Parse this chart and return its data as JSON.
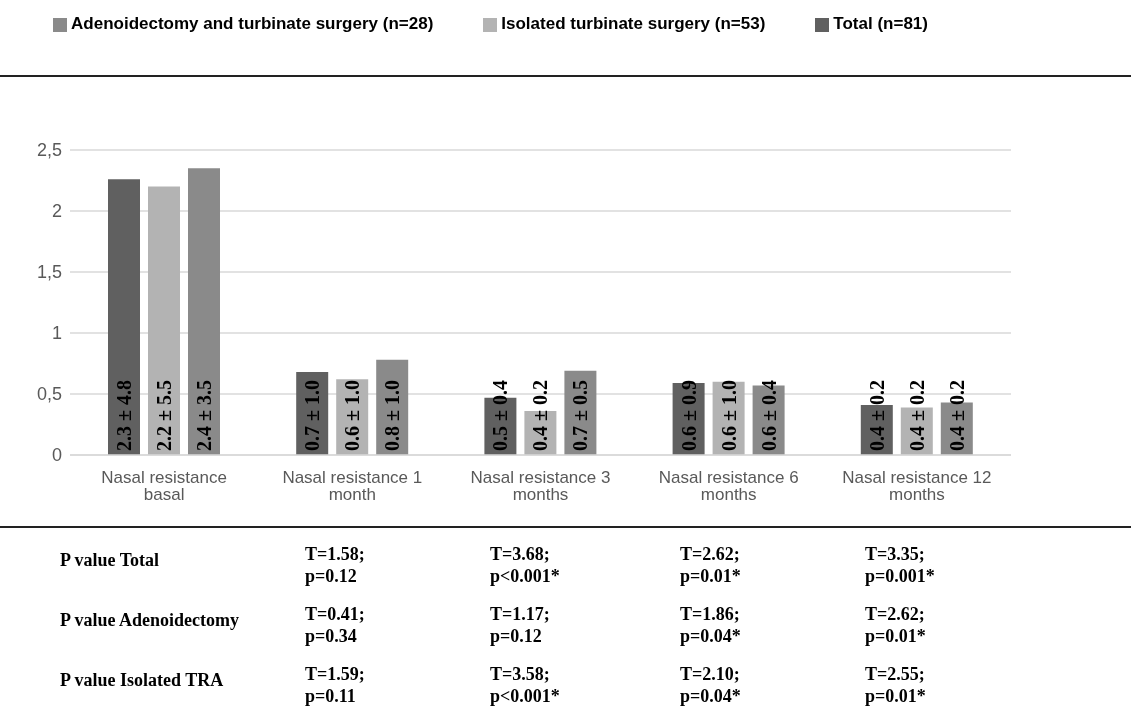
{
  "chart_data": {
    "type": "bar",
    "categories": [
      "Nasal resistance basal",
      "Nasal resistance 1 month",
      "Nasal resistance 3 months",
      "Nasal resistance 6 months",
      "Nasal resistance 12 months"
    ],
    "series": [
      {
        "name": "Total (n=81)",
        "color": "#606060",
        "values": [
          2.26,
          0.68,
          0.47,
          0.59,
          0.41
        ],
        "value_labels": [
          "2.3 ± 4.8",
          "0.7 ± 1.0",
          "0.5 ± 0.4",
          "0.6 ± 0.9",
          "0.4 ± 0.2"
        ]
      },
      {
        "name": "Isolated turbinate surgery (n=53)",
        "color": "#b3b3b3",
        "values": [
          2.2,
          0.62,
          0.36,
          0.6,
          0.39
        ],
        "value_labels": [
          "2.2 ± 5.5",
          "0.6 ± 1.0",
          "0.4 ± 0.2",
          "0.6 ± 1.0",
          "0.4 ± 0.2"
        ]
      },
      {
        "name": "Adenoidectomy and turbinate surgery (n=28)",
        "color": "#8a8a8a",
        "values": [
          2.35,
          0.78,
          0.69,
          0.57,
          0.43
        ],
        "value_labels": [
          "2.4 ± 3.5",
          "0.8 ± 1.0",
          "0.7 ± 0.5",
          "0.6 ± 0.4",
          "0.4 ± 0.2"
        ]
      }
    ],
    "ylim": [
      0,
      2.5
    ],
    "yticks": [
      0,
      {
        "value": 0.5,
        "label": "0,5"
      },
      1,
      {
        "value": 1.5,
        "label": "1,5"
      },
      2,
      {
        "value": 2.5,
        "label": "2,5"
      }
    ],
    "grid": "y",
    "legend": "top",
    "annotations": [
      "P value Total",
      "T=1.58; p=0.12",
      "T=3.68; p<0.001*",
      "T=2.62; p=0.01*",
      "T=3.35; p=0.001*",
      "P value Adenoidectomy",
      "T=0.41; p=0.34",
      "T=1.17; p=0.12",
      "T=1.86; p=0.04*",
      "T=2.62; p=0.01*",
      "P value Isolated TRA",
      "T=1.59; p=0.11",
      "T=3.58; p<0.001*",
      "T=2.10; p=0.04*",
      "T=2.55; p=0.01*"
    ]
  }
}
